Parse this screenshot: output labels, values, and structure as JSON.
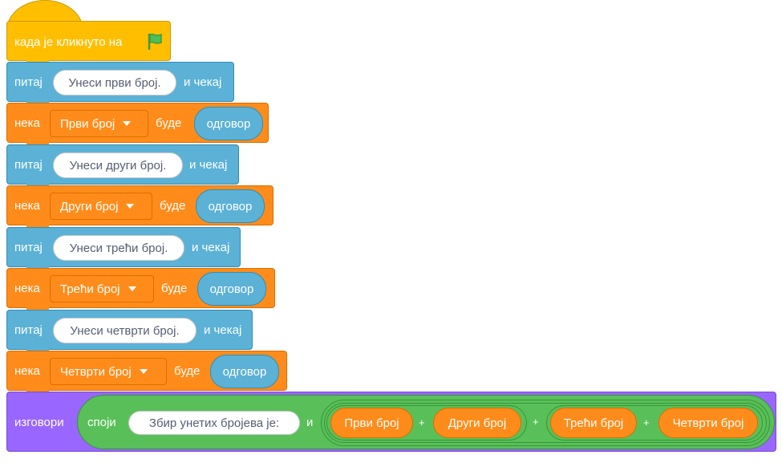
{
  "colors": {
    "events": "#ffbf00",
    "sensing": "#5cb1d6",
    "variables": "#ff8c1a",
    "looks": "#9966ff",
    "operators": "#59c059"
  },
  "hat": {
    "label": "када је кликнуто на",
    "icon": "green-flag-icon"
  },
  "blocks": [
    {
      "type": "ask",
      "label": "питај",
      "input": "Унеси први број.",
      "suffix": "и чекај"
    },
    {
      "type": "set",
      "label": "нека",
      "variable": "Први број",
      "mid": "буде",
      "value": "одговор"
    },
    {
      "type": "ask",
      "label": "питај",
      "input": "Унеси други број.",
      "suffix": "и чекај"
    },
    {
      "type": "set",
      "label": "нека",
      "variable": "Други број",
      "mid": "буде",
      "value": "одговор"
    },
    {
      "type": "ask",
      "label": "питај",
      "input": "Унеси трећи број.",
      "suffix": "и чекај"
    },
    {
      "type": "set",
      "label": "нека",
      "variable": "Трећи број",
      "mid": "буде",
      "value": "одговор"
    },
    {
      "type": "ask",
      "label": "питај",
      "input": "Унеси четврти број.",
      "suffix": "и чекај"
    },
    {
      "type": "set",
      "label": "нека",
      "variable": "Четврти број",
      "mid": "буде",
      "value": "одговор"
    }
  ],
  "say": {
    "label": "изговори",
    "join_label": "споји",
    "join_text": "Збир унетих бројева је:",
    "join_and": "и",
    "plus": "+",
    "vars": [
      "Први број",
      "Други број",
      "Трећи број",
      "Четврти број"
    ]
  }
}
